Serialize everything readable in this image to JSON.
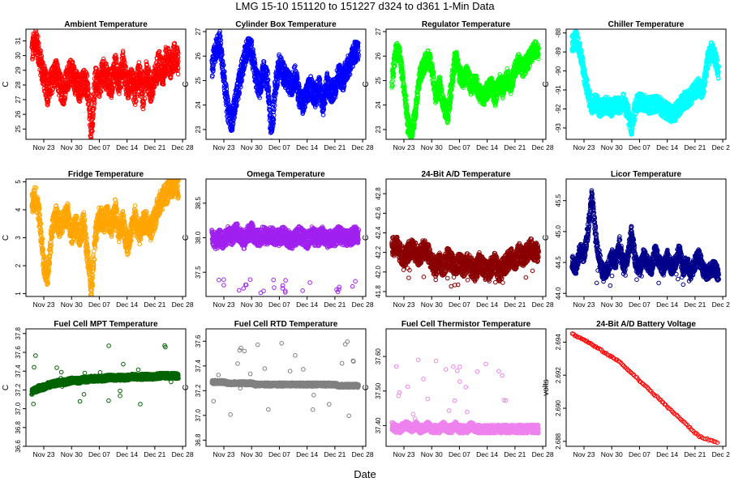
{
  "figure": {
    "title": "LMG   15-10     151120 to 151227     d324 to d361    1-Min Data",
    "xlabel": "Date"
  },
  "chart_data": [
    {
      "type": "scatter",
      "title": "Ambient Temperature",
      "ylabel": "C",
      "color": "#ff0000",
      "xticks": [
        "Nov 23",
        "Nov 30",
        "Dec 07",
        "Dec 14",
        "Dec 21",
        "Dec 28"
      ],
      "ylim": [
        24.3,
        31.8
      ],
      "yticks": [
        25,
        26,
        27,
        28,
        29,
        30,
        31
      ],
      "x": [
        0,
        1,
        2,
        3,
        4,
        5,
        6,
        7,
        8,
        9,
        10,
        11,
        12,
        13,
        14,
        15,
        16,
        17,
        18,
        19,
        20,
        21,
        22,
        23,
        24,
        25,
        26,
        27,
        28,
        29,
        30,
        31,
        32,
        33,
        34,
        35,
        36,
        37
      ],
      "y": [
        30.3,
        31.2,
        29.7,
        28.6,
        27.5,
        28.3,
        28.9,
        28.0,
        27.5,
        28.5,
        29.0,
        28.2,
        27.7,
        28.3,
        27.8,
        24.5,
        28.5,
        28.0,
        29.0,
        28.4,
        28.0,
        29.3,
        28.2,
        29.5,
        27.8,
        28.4,
        27.4,
        28.8,
        27.2,
        28.9,
        27.6,
        28.4,
        29.6,
        28.7,
        29.9,
        29.2,
        30.0,
        29.5
      ],
      "spread": 0.9
    },
    {
      "type": "scatter",
      "title": "Cylinder Box Temperature",
      "ylabel": "C",
      "color": "#0000ff",
      "xticks": [
        "Nov 23",
        "Nov 30",
        "Dec 07",
        "Dec 14",
        "Dec 21",
        "Dec 28"
      ],
      "ylim": [
        22.6,
        27.1
      ],
      "yticks": [
        23,
        24,
        25,
        26,
        27
      ],
      "x": [
        0,
        1,
        2,
        3,
        4,
        5,
        6,
        7,
        8,
        9,
        10,
        11,
        12,
        13,
        14,
        15,
        16,
        17,
        18,
        19,
        20,
        21,
        22,
        23,
        24,
        25,
        26,
        27,
        28,
        29,
        30,
        31,
        32,
        33,
        34,
        35,
        36,
        37
      ],
      "y": [
        25.5,
        26.3,
        26.6,
        25.2,
        23.8,
        23.3,
        24.2,
        25.0,
        25.8,
        26.4,
        26.2,
        25.2,
        24.7,
        25.4,
        25.0,
        22.8,
        24.8,
        25.7,
        25.3,
        25.0,
        24.8,
        25.2,
        24.4,
        24.0,
        24.5,
        24.8,
        24.3,
        24.8,
        24.0,
        24.9,
        24.5,
        24.7,
        25.3,
        25.0,
        25.5,
        25.7,
        26.2,
        26.1
      ],
      "spread": 0.45
    },
    {
      "type": "scatter",
      "title": "Regulator Temperature",
      "ylabel": "C",
      "color": "#00ff00",
      "xticks": [
        "Nov 23",
        "Nov 30",
        "Dec 07",
        "Dec 14",
        "Dec 21",
        "Dec 28"
      ],
      "ylim": [
        22.6,
        27.1
      ],
      "yticks": [
        23,
        24,
        25,
        26,
        27
      ],
      "x": [
        0,
        1,
        2,
        3,
        4,
        5,
        6,
        7,
        8,
        9,
        10,
        11,
        12,
        13,
        14,
        15,
        16,
        17,
        18,
        19,
        20,
        21,
        22,
        23,
        24,
        25,
        26,
        27,
        28,
        29,
        30,
        31,
        32,
        33,
        34,
        35,
        36,
        37
      ],
      "y": [
        25.0,
        26.3,
        26.0,
        24.7,
        23.2,
        22.9,
        23.8,
        25.2,
        25.6,
        26.0,
        25.5,
        24.4,
        24.8,
        24.0,
        23.6,
        24.8,
        26.0,
        25.3,
        25.0,
        25.3,
        24.7,
        25.0,
        24.5,
        24.3,
        24.6,
        24.8,
        24.3,
        25.0,
        24.6,
        25.2,
        24.8,
        25.4,
        25.8,
        25.5,
        25.7,
        26.0,
        26.3,
        26.2
      ],
      "spread": 0.35
    },
    {
      "type": "scatter",
      "title": "Chiller Temperature",
      "ylabel": "C",
      "color": "#00ffff",
      "xticks": [
        "Nov 23",
        "Nov 30",
        "Dec 07",
        "Dec 14",
        "Dec 21",
        "Dec 28"
      ],
      "ylim": [
        -93.6,
        -87.8
      ],
      "yticks": [
        -93,
        -92,
        -91,
        -90,
        -89,
        -88
      ],
      "x": [
        0,
        1,
        2,
        3,
        4,
        5,
        6,
        7,
        8,
        9,
        10,
        11,
        12,
        13,
        14,
        15,
        16,
        17,
        18,
        19,
        20,
        21,
        22,
        23,
        24,
        25,
        26,
        27,
        28,
        29,
        30,
        31,
        32,
        33,
        34,
        35,
        36,
        37
      ],
      "y": [
        -88.6,
        -88.3,
        -89.0,
        -90.1,
        -91.2,
        -91.8,
        -91.6,
        -92.0,
        -91.8,
        -91.8,
        -92.0,
        -91.7,
        -91.9,
        -91.6,
        -92.2,
        -93.0,
        -91.8,
        -91.6,
        -91.7,
        -91.8,
        -91.8,
        -91.7,
        -91.8,
        -92.0,
        -92.1,
        -92.3,
        -92.2,
        -91.9,
        -91.6,
        -91.5,
        -91.3,
        -91.0,
        -90.8,
        -91.1,
        -89.6,
        -88.9,
        -89.2,
        -90.1
      ],
      "spread": 0.45
    },
    {
      "type": "scatter",
      "title": "Fridge Temperature",
      "ylabel": "C",
      "color": "#ffa500",
      "xticks": [
        "Nov 23",
        "Nov 30",
        "Dec 07",
        "Dec 14",
        "Dec 21",
        "Dec 28"
      ],
      "ylim": [
        0.9,
        5.1
      ],
      "yticks": [
        1,
        2,
        3,
        4,
        5
      ],
      "x": [
        0,
        1,
        2,
        3,
        4,
        5,
        6,
        7,
        8,
        9,
        10,
        11,
        12,
        13,
        14,
        15,
        16,
        17,
        18,
        19,
        20,
        21,
        22,
        23,
        24,
        25,
        26,
        27,
        28,
        29,
        30,
        31,
        32,
        33,
        34,
        35,
        36,
        37
      ],
      "y": [
        4.2,
        4.5,
        3.6,
        2.0,
        1.6,
        3.2,
        3.8,
        3.4,
        3.6,
        3.9,
        3.1,
        3.5,
        3.0,
        3.6,
        2.4,
        1.1,
        3.0,
        3.8,
        3.5,
        3.8,
        3.4,
        4.0,
        3.2,
        3.6,
        2.7,
        3.2,
        3.8,
        3.1,
        3.5,
        3.6,
        3.3,
        3.7,
        4.2,
        4.4,
        4.6,
        4.8,
        4.9,
        4.7
      ],
      "spread": 0.4
    },
    {
      "type": "scatter",
      "title": "Omega Temperature",
      "ylabel": "C",
      "color": "#a020f0",
      "xticks": [
        "Nov 23",
        "Nov 30",
        "Dec 07",
        "Dec 14",
        "Dec 21",
        "Dec 28"
      ],
      "ylim": [
        37.15,
        38.85
      ],
      "yticks": [
        37.5,
        38.0,
        38.5
      ],
      "x": [
        0,
        1,
        2,
        3,
        4,
        5,
        6,
        7,
        8,
        9,
        10,
        11,
        12,
        13,
        14,
        15,
        16,
        17,
        18,
        19,
        20,
        21,
        22,
        23,
        24,
        25,
        26,
        27,
        28,
        29,
        30,
        31,
        32,
        33,
        34,
        35,
        36,
        37
      ],
      "y": [
        38.0,
        37.95,
        38.0,
        37.95,
        38.05,
        38.0,
        38.1,
        38.05,
        37.95,
        38.05,
        38.1,
        38.0,
        38.0,
        38.05,
        38.0,
        38.05,
        38.0,
        38.0,
        38.05,
        38.0,
        37.95,
        38.0,
        38.05,
        38.0,
        37.95,
        38.05,
        38.0,
        38.0,
        38.05,
        37.95,
        38.0,
        38.0,
        38.05,
        38.0,
        38.0,
        38.0,
        38.05,
        38.0
      ],
      "spread": 0.12
    },
    {
      "type": "scatter",
      "title": "24-Bit A/D Temperature",
      "ylabel": "C",
      "color": "#8b0000",
      "xticks": [
        "Nov 23",
        "Nov 30",
        "Dec 07",
        "Dec 14",
        "Dec 21",
        "Dec 28"
      ],
      "ylim": [
        41.75,
        42.95
      ],
      "yticks": [
        41.8,
        42.0,
        42.2,
        42.4,
        42.6,
        42.8
      ],
      "x": [
        0,
        1,
        2,
        3,
        4,
        5,
        6,
        7,
        8,
        9,
        10,
        11,
        12,
        13,
        14,
        15,
        16,
        17,
        18,
        19,
        20,
        21,
        22,
        23,
        24,
        25,
        26,
        27,
        28,
        29,
        30,
        31,
        32,
        33,
        34,
        35,
        36,
        37
      ],
      "y": [
        42.25,
        42.28,
        42.2,
        42.15,
        42.2,
        42.25,
        42.2,
        42.15,
        42.25,
        42.2,
        42.1,
        42.05,
        42.1,
        42.05,
        42.15,
        42.1,
        42.05,
        42.1,
        42.05,
        42.1,
        42.05,
        42.0,
        42.1,
        42.05,
        42.0,
        42.05,
        42.1,
        42.0,
        42.05,
        42.1,
        42.15,
        42.1,
        42.2,
        42.15,
        42.2,
        42.25,
        42.2,
        42.2
      ],
      "spread": 0.1
    },
    {
      "type": "scatter",
      "title": "Licor Temperature",
      "ylabel": "C",
      "color": "#00008b",
      "xticks": [
        "Nov 23",
        "Nov 30",
        "Dec 07",
        "Dec 14",
        "Dec 21",
        "Dec 28"
      ],
      "ylim": [
        43.95,
        45.85
      ],
      "yticks": [
        44.0,
        44.5,
        45.0,
        45.5
      ],
      "x": [
        0,
        1,
        2,
        3,
        4,
        5,
        6,
        7,
        8,
        9,
        10,
        11,
        12,
        13,
        14,
        15,
        16,
        17,
        18,
        19,
        20,
        21,
        22,
        23,
        24,
        25,
        26,
        27,
        28,
        29,
        30,
        31,
        32,
        33,
        34,
        35,
        36,
        37
      ],
      "y": [
        44.5,
        44.4,
        44.7,
        44.6,
        45.0,
        45.6,
        44.9,
        44.5,
        44.3,
        44.4,
        44.6,
        44.5,
        44.8,
        44.4,
        44.6,
        45.0,
        44.5,
        44.4,
        44.6,
        44.5,
        44.4,
        44.7,
        44.5,
        44.4,
        44.6,
        44.4,
        44.5,
        44.7,
        44.4,
        44.5,
        44.3,
        44.5,
        44.6,
        44.4,
        44.3,
        44.4,
        44.4,
        44.3
      ],
      "spread": 0.12
    },
    {
      "type": "scatter",
      "title": "Fuel Cell MPT Temperature",
      "ylabel": "C",
      "color": "#006400",
      "xticks": [
        "Nov 23",
        "Nov 30",
        "Dec 07",
        "Dec 14",
        "Dec 21",
        "Dec 28"
      ],
      "ylim": [
        36.6,
        37.85
      ],
      "yticks": [
        36.6,
        36.8,
        37.0,
        37.2,
        37.4,
        37.6,
        37.8
      ],
      "x": [
        0,
        1,
        2,
        3,
        4,
        5,
        6,
        7,
        8,
        9,
        10,
        11,
        12,
        13,
        14,
        15,
        16,
        17,
        18,
        19,
        20,
        21,
        22,
        23,
        24,
        25,
        26,
        27,
        28,
        29,
        30,
        31,
        32,
        33,
        34,
        35,
        36,
        37
      ],
      "y": [
        37.18,
        37.2,
        37.22,
        37.23,
        37.25,
        37.26,
        37.27,
        37.28,
        37.28,
        37.29,
        37.3,
        37.3,
        37.3,
        37.31,
        37.31,
        37.32,
        37.32,
        37.32,
        37.32,
        37.33,
        37.33,
        37.33,
        37.33,
        37.33,
        37.33,
        37.34,
        37.34,
        37.34,
        37.34,
        37.34,
        37.34,
        37.34,
        37.35,
        37.35,
        37.35,
        37.35,
        37.35,
        37.35
      ],
      "spread": 0.03
    },
    {
      "type": "scatter",
      "title": "Fuel Cell RTD Temperature",
      "ylabel": "C",
      "color": "#808080",
      "xticks": [
        "Nov 23",
        "Nov 30",
        "Dec 07",
        "Dec 14",
        "Dec 21",
        "Dec 28"
      ],
      "ylim": [
        36.75,
        37.7
      ],
      "yticks": [
        36.8,
        37.0,
        37.2,
        37.4,
        37.6
      ],
      "x": [
        0,
        1,
        2,
        3,
        4,
        5,
        6,
        7,
        8,
        9,
        10,
        11,
        12,
        13,
        14,
        15,
        16,
        17,
        18,
        19,
        20,
        21,
        22,
        23,
        24,
        25,
        26,
        27,
        28,
        29,
        30,
        31,
        32,
        33,
        34,
        35,
        36,
        37
      ],
      "y": [
        37.27,
        37.27,
        37.27,
        37.27,
        37.26,
        37.26,
        37.26,
        37.26,
        37.26,
        37.26,
        37.26,
        37.25,
        37.25,
        37.25,
        37.25,
        37.25,
        37.25,
        37.25,
        37.25,
        37.25,
        37.25,
        37.25,
        37.25,
        37.25,
        37.25,
        37.25,
        37.25,
        37.25,
        37.25,
        37.25,
        37.25,
        37.25,
        37.24,
        37.24,
        37.24,
        37.24,
        37.24,
        37.24
      ],
      "spread": 0.015
    },
    {
      "type": "scatter",
      "title": "Fuel Cell Thermistor Temperature",
      "ylabel": "C",
      "color": "#ee82ee",
      "xticks": [
        "Nov 23",
        "Nov 30",
        "Dec 07",
        "Dec 14",
        "Dec 21",
        "Dec 28"
      ],
      "ylim": [
        37.34,
        37.68
      ],
      "yticks": [
        37.4,
        37.5,
        37.6
      ],
      "x": [
        0,
        1,
        2,
        3,
        4,
        5,
        6,
        7,
        8,
        9,
        10,
        11,
        12,
        13,
        14,
        15,
        16,
        17,
        18,
        19,
        20,
        21,
        22,
        23,
        24,
        25,
        26,
        27,
        28,
        29,
        30,
        31,
        32,
        33,
        34,
        35,
        36,
        37
      ],
      "y": [
        37.4,
        37.39,
        37.39,
        37.4,
        37.4,
        37.39,
        37.4,
        37.39,
        37.39,
        37.4,
        37.39,
        37.39,
        37.39,
        37.4,
        37.39,
        37.39,
        37.4,
        37.39,
        37.39,
        37.39,
        37.4,
        37.39,
        37.39,
        37.39,
        37.39,
        37.39,
        37.39,
        37.39,
        37.39,
        37.39,
        37.39,
        37.39,
        37.39,
        37.39,
        37.39,
        37.39,
        37.39,
        37.39
      ],
      "spread": 0.012
    },
    {
      "type": "line",
      "title": "24-Bit A/D Battery Voltage",
      "ylabel": "volts",
      "color": "#ff0000",
      "xticks": [
        "Nov 23",
        "Nov 30",
        "Dec 07",
        "Dec 14",
        "Dec 21",
        "Dec 28"
      ],
      "ylim": [
        2.6877,
        2.6948
      ],
      "yticks": [
        2.688,
        2.69,
        2.692,
        2.694
      ],
      "x": [
        0,
        4,
        8,
        12,
        16,
        20,
        24,
        28,
        32,
        37
      ],
      "y": [
        2.6945,
        2.694,
        2.6934,
        2.6928,
        2.6919,
        2.691,
        2.6901,
        2.6892,
        2.6883,
        2.6879
      ],
      "spread": 4e-05
    }
  ]
}
